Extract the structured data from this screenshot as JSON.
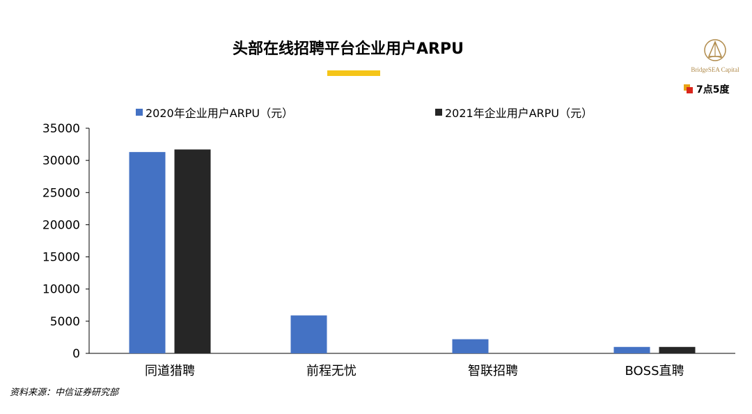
{
  "header": {
    "title": "头部在线招聘平台企业用户ARPU",
    "logo_text": "BridgeSEA Capital",
    "brand_text": "7点5度",
    "accent_color": "#f5c518"
  },
  "source_note": "资料来源：中信证券研究部",
  "chart_data": {
    "type": "bar",
    "title": "头部在线招聘平台企业用户ARPU",
    "xlabel": "",
    "ylabel": "",
    "categories": [
      "同道猎聘",
      "前程无忧",
      "智联招聘",
      "BOSS直聘"
    ],
    "series": [
      {
        "name": "2020年企业用户ARPU（元）",
        "color": "#4472c4",
        "values": [
          31300,
          5900,
          2200,
          1000
        ]
      },
      {
        "name": "2021年企业用户ARPU（元）",
        "color": "#262626",
        "values": [
          31700,
          null,
          null,
          1000
        ]
      }
    ],
    "ylim": [
      0,
      35000
    ],
    "yticks": [
      "0",
      "5000",
      "10000",
      "15000",
      "20000",
      "25000",
      "30000",
      "35000"
    ],
    "grid": false,
    "legend_position": "top"
  }
}
